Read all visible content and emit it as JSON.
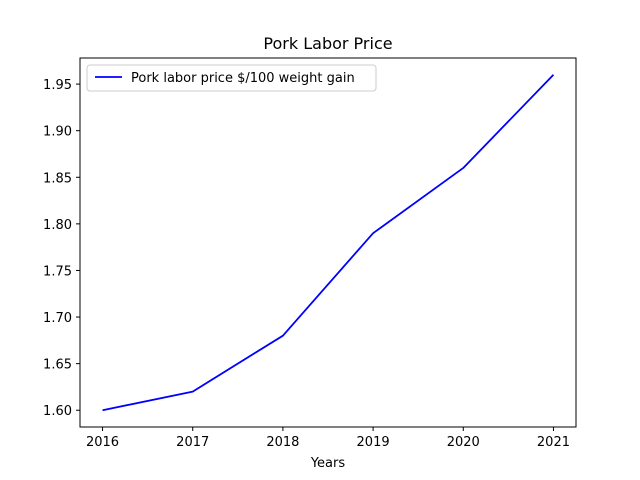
{
  "chart_data": {
    "type": "line",
    "title": "Pork Labor Price",
    "xlabel": "Years",
    "ylabel": "",
    "x": [
      2016,
      2017,
      2018,
      2019,
      2020,
      2021
    ],
    "series": [
      {
        "name": "Pork labor price $/100 weight gain",
        "values": [
          1.6,
          1.62,
          1.68,
          1.79,
          1.86,
          1.96
        ],
        "color": "#0000ff"
      }
    ],
    "xlim": [
      2015.75,
      2021.25
    ],
    "ylim": [
      1.582,
      1.978
    ],
    "xticks": [
      2016,
      2017,
      2018,
      2019,
      2020,
      2021
    ],
    "xtick_labels": [
      "2016",
      "2017",
      "2018",
      "2019",
      "2020",
      "2021"
    ],
    "yticks": [
      1.6,
      1.65,
      1.7,
      1.75,
      1.8,
      1.85,
      1.9,
      1.95
    ],
    "ytick_labels": [
      "1.60",
      "1.65",
      "1.70",
      "1.75",
      "1.80",
      "1.85",
      "1.90",
      "1.95"
    ],
    "grid": false,
    "legend_position": "upper-left"
  }
}
